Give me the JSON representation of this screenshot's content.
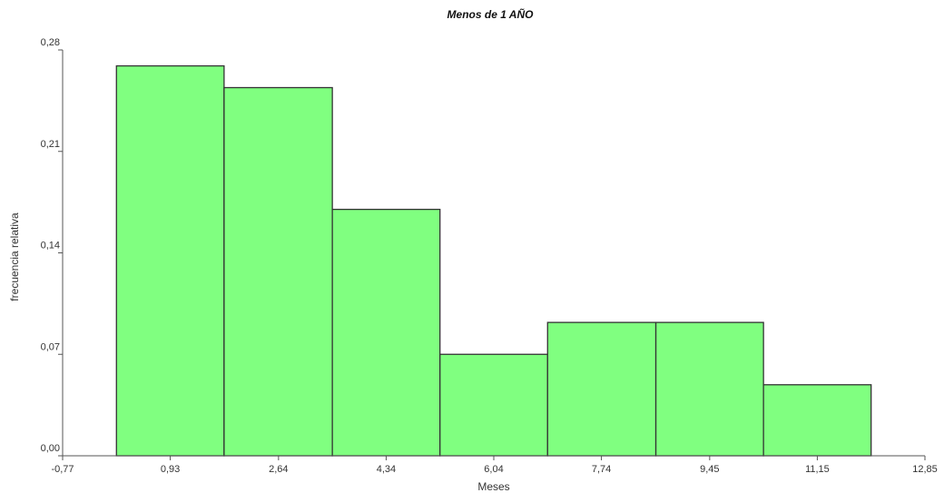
{
  "chart_data": {
    "type": "bar",
    "title": "Menos de 1 AÑO",
    "xlabel": "Meses",
    "ylabel": "frecuencia relativa",
    "x_ticks": [
      "-0,77",
      "0,93",
      "2,64",
      "4,34",
      "6,04",
      "7,74",
      "9,45",
      "11,15",
      "12,85"
    ],
    "x_tick_values": [
      -0.77,
      0.93,
      2.64,
      4.34,
      6.04,
      7.74,
      9.45,
      11.15,
      12.85
    ],
    "y_ticks": [
      "0,00",
      "0,07",
      "0,14",
      "0,21",
      "0,28"
    ],
    "y_tick_values": [
      0.0,
      0.07,
      0.14,
      0.21,
      0.28
    ],
    "xlim": [
      -0.77,
      12.85
    ],
    "ylim": [
      0,
      0.28
    ],
    "bins": [
      {
        "start": 0.08,
        "end": 1.78,
        "value": 0.269
      },
      {
        "start": 1.78,
        "end": 3.49,
        "value": 0.254
      },
      {
        "start": 3.49,
        "end": 5.19,
        "value": 0.17
      },
      {
        "start": 5.19,
        "end": 6.89,
        "value": 0.07
      },
      {
        "start": 6.89,
        "end": 8.6,
        "value": 0.092
      },
      {
        "start": 8.6,
        "end": 10.3,
        "value": 0.092
      },
      {
        "start": 10.3,
        "end": 12.0,
        "value": 0.049
      }
    ],
    "bar_color": "#80ff80",
    "bar_edge_color": "#333333",
    "axis_color": "#555555",
    "grid": false,
    "legend": "none"
  }
}
